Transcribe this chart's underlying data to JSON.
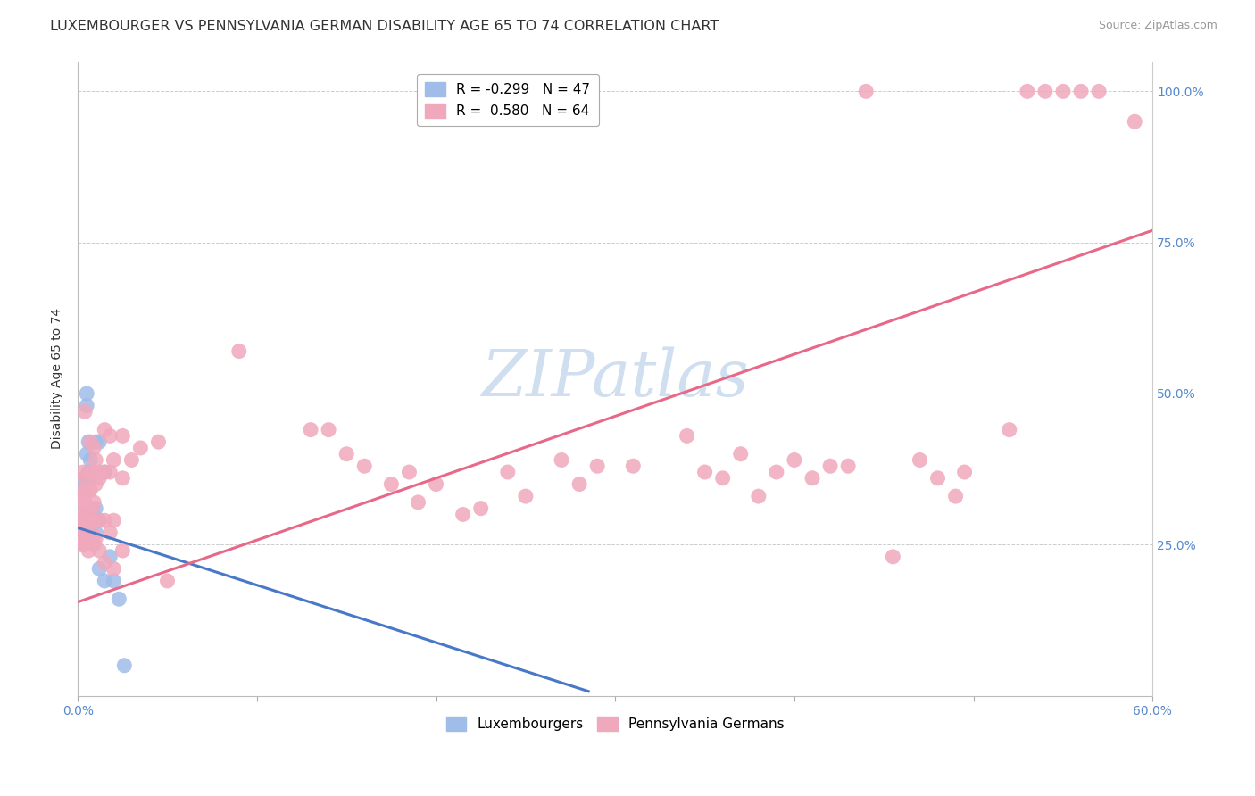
{
  "title": "LUXEMBOURGER VS PENNSYLVANIA GERMAN DISABILITY AGE 65 TO 74 CORRELATION CHART",
  "source": "Source: ZipAtlas.com",
  "ylabel": "Disability Age 65 to 74",
  "x_min": 0.0,
  "x_max": 0.6,
  "y_min": 0.0,
  "y_max": 1.05,
  "lux_color": "#a0bce8",
  "pa_color": "#f0a8bc",
  "lux_line_color": "#4878c8",
  "pa_line_color": "#e86888",
  "watermark_color": "#d0dff0",
  "lux_points": [
    [
      0.001,
      0.27
    ],
    [
      0.001,
      0.27
    ],
    [
      0.001,
      0.27
    ],
    [
      0.001,
      0.27
    ],
    [
      0.002,
      0.26
    ],
    [
      0.002,
      0.27
    ],
    [
      0.002,
      0.27
    ],
    [
      0.002,
      0.28
    ],
    [
      0.002,
      0.28
    ],
    [
      0.003,
      0.27
    ],
    [
      0.003,
      0.27
    ],
    [
      0.003,
      0.28
    ],
    [
      0.003,
      0.28
    ],
    [
      0.003,
      0.27
    ],
    [
      0.004,
      0.27
    ],
    [
      0.004,
      0.27
    ],
    [
      0.004,
      0.26
    ],
    [
      0.004,
      0.35
    ],
    [
      0.004,
      0.36
    ],
    [
      0.005,
      0.26
    ],
    [
      0.005,
      0.27
    ],
    [
      0.005,
      0.3
    ],
    [
      0.005,
      0.4
    ],
    [
      0.005,
      0.48
    ],
    [
      0.005,
      0.5
    ],
    [
      0.006,
      0.26
    ],
    [
      0.006,
      0.35
    ],
    [
      0.006,
      0.37
    ],
    [
      0.006,
      0.42
    ],
    [
      0.007,
      0.27
    ],
    [
      0.007,
      0.28
    ],
    [
      0.007,
      0.37
    ],
    [
      0.007,
      0.39
    ],
    [
      0.008,
      0.25
    ],
    [
      0.008,
      0.3
    ],
    [
      0.01,
      0.27
    ],
    [
      0.01,
      0.31
    ],
    [
      0.01,
      0.42
    ],
    [
      0.012,
      0.21
    ],
    [
      0.012,
      0.29
    ],
    [
      0.012,
      0.42
    ],
    [
      0.015,
      0.19
    ],
    [
      0.015,
      0.37
    ],
    [
      0.018,
      0.23
    ],
    [
      0.02,
      0.19
    ],
    [
      0.023,
      0.16
    ],
    [
      0.026,
      0.05
    ]
  ],
  "pa_points": [
    [
      0.001,
      0.27
    ],
    [
      0.001,
      0.28
    ],
    [
      0.001,
      0.29
    ],
    [
      0.002,
      0.25
    ],
    [
      0.002,
      0.27
    ],
    [
      0.002,
      0.28
    ],
    [
      0.002,
      0.3
    ],
    [
      0.002,
      0.33
    ],
    [
      0.003,
      0.25
    ],
    [
      0.003,
      0.27
    ],
    [
      0.003,
      0.29
    ],
    [
      0.003,
      0.34
    ],
    [
      0.003,
      0.37
    ],
    [
      0.004,
      0.25
    ],
    [
      0.004,
      0.29
    ],
    [
      0.004,
      0.32
    ],
    [
      0.004,
      0.36
    ],
    [
      0.004,
      0.47
    ],
    [
      0.005,
      0.26
    ],
    [
      0.005,
      0.29
    ],
    [
      0.005,
      0.31
    ],
    [
      0.006,
      0.24
    ],
    [
      0.006,
      0.29
    ],
    [
      0.006,
      0.34
    ],
    [
      0.007,
      0.26
    ],
    [
      0.007,
      0.34
    ],
    [
      0.007,
      0.37
    ],
    [
      0.007,
      0.42
    ],
    [
      0.008,
      0.27
    ],
    [
      0.008,
      0.29
    ],
    [
      0.008,
      0.31
    ],
    [
      0.008,
      0.37
    ],
    [
      0.009,
      0.25
    ],
    [
      0.009,
      0.32
    ],
    [
      0.009,
      0.41
    ],
    [
      0.01,
      0.26
    ],
    [
      0.01,
      0.35
    ],
    [
      0.01,
      0.39
    ],
    [
      0.012,
      0.24
    ],
    [
      0.012,
      0.29
    ],
    [
      0.012,
      0.36
    ],
    [
      0.012,
      0.37
    ],
    [
      0.015,
      0.22
    ],
    [
      0.015,
      0.29
    ],
    [
      0.015,
      0.37
    ],
    [
      0.015,
      0.44
    ],
    [
      0.018,
      0.27
    ],
    [
      0.018,
      0.37
    ],
    [
      0.018,
      0.43
    ],
    [
      0.02,
      0.21
    ],
    [
      0.02,
      0.29
    ],
    [
      0.02,
      0.39
    ],
    [
      0.025,
      0.24
    ],
    [
      0.025,
      0.36
    ],
    [
      0.025,
      0.43
    ],
    [
      0.03,
      0.39
    ],
    [
      0.035,
      0.41
    ],
    [
      0.045,
      0.42
    ],
    [
      0.05,
      0.19
    ],
    [
      0.09,
      0.57
    ],
    [
      0.13,
      0.44
    ],
    [
      0.14,
      0.44
    ],
    [
      0.15,
      0.4
    ],
    [
      0.16,
      0.38
    ],
    [
      0.175,
      0.35
    ],
    [
      0.185,
      0.37
    ],
    [
      0.19,
      0.32
    ],
    [
      0.2,
      0.35
    ],
    [
      0.215,
      0.3
    ],
    [
      0.225,
      0.31
    ],
    [
      0.24,
      0.37
    ],
    [
      0.25,
      0.33
    ],
    [
      0.27,
      0.39
    ],
    [
      0.28,
      0.35
    ],
    [
      0.29,
      0.38
    ],
    [
      0.31,
      0.38
    ],
    [
      0.34,
      0.43
    ],
    [
      0.35,
      0.37
    ],
    [
      0.36,
      0.36
    ],
    [
      0.37,
      0.4
    ],
    [
      0.38,
      0.33
    ],
    [
      0.39,
      0.37
    ],
    [
      0.4,
      0.39
    ],
    [
      0.41,
      0.36
    ],
    [
      0.42,
      0.38
    ],
    [
      0.43,
      0.38
    ],
    [
      0.44,
      1.0
    ],
    [
      0.455,
      0.23
    ],
    [
      0.47,
      0.39
    ],
    [
      0.48,
      0.36
    ],
    [
      0.49,
      0.33
    ],
    [
      0.495,
      0.37
    ],
    [
      0.52,
      0.44
    ],
    [
      0.53,
      1.0
    ],
    [
      0.54,
      1.0
    ],
    [
      0.55,
      1.0
    ],
    [
      0.56,
      1.0
    ],
    [
      0.57,
      1.0
    ],
    [
      0.59,
      0.95
    ]
  ],
  "lux_intercept": 0.278,
  "lux_slope": -0.95,
  "pa_intercept": 0.155,
  "pa_slope": 1.025,
  "grid_color": "#cccccc",
  "background_color": "#ffffff",
  "title_fontsize": 11.5,
  "axis_label_fontsize": 10,
  "tick_fontsize": 10,
  "legend_fontsize": 11
}
